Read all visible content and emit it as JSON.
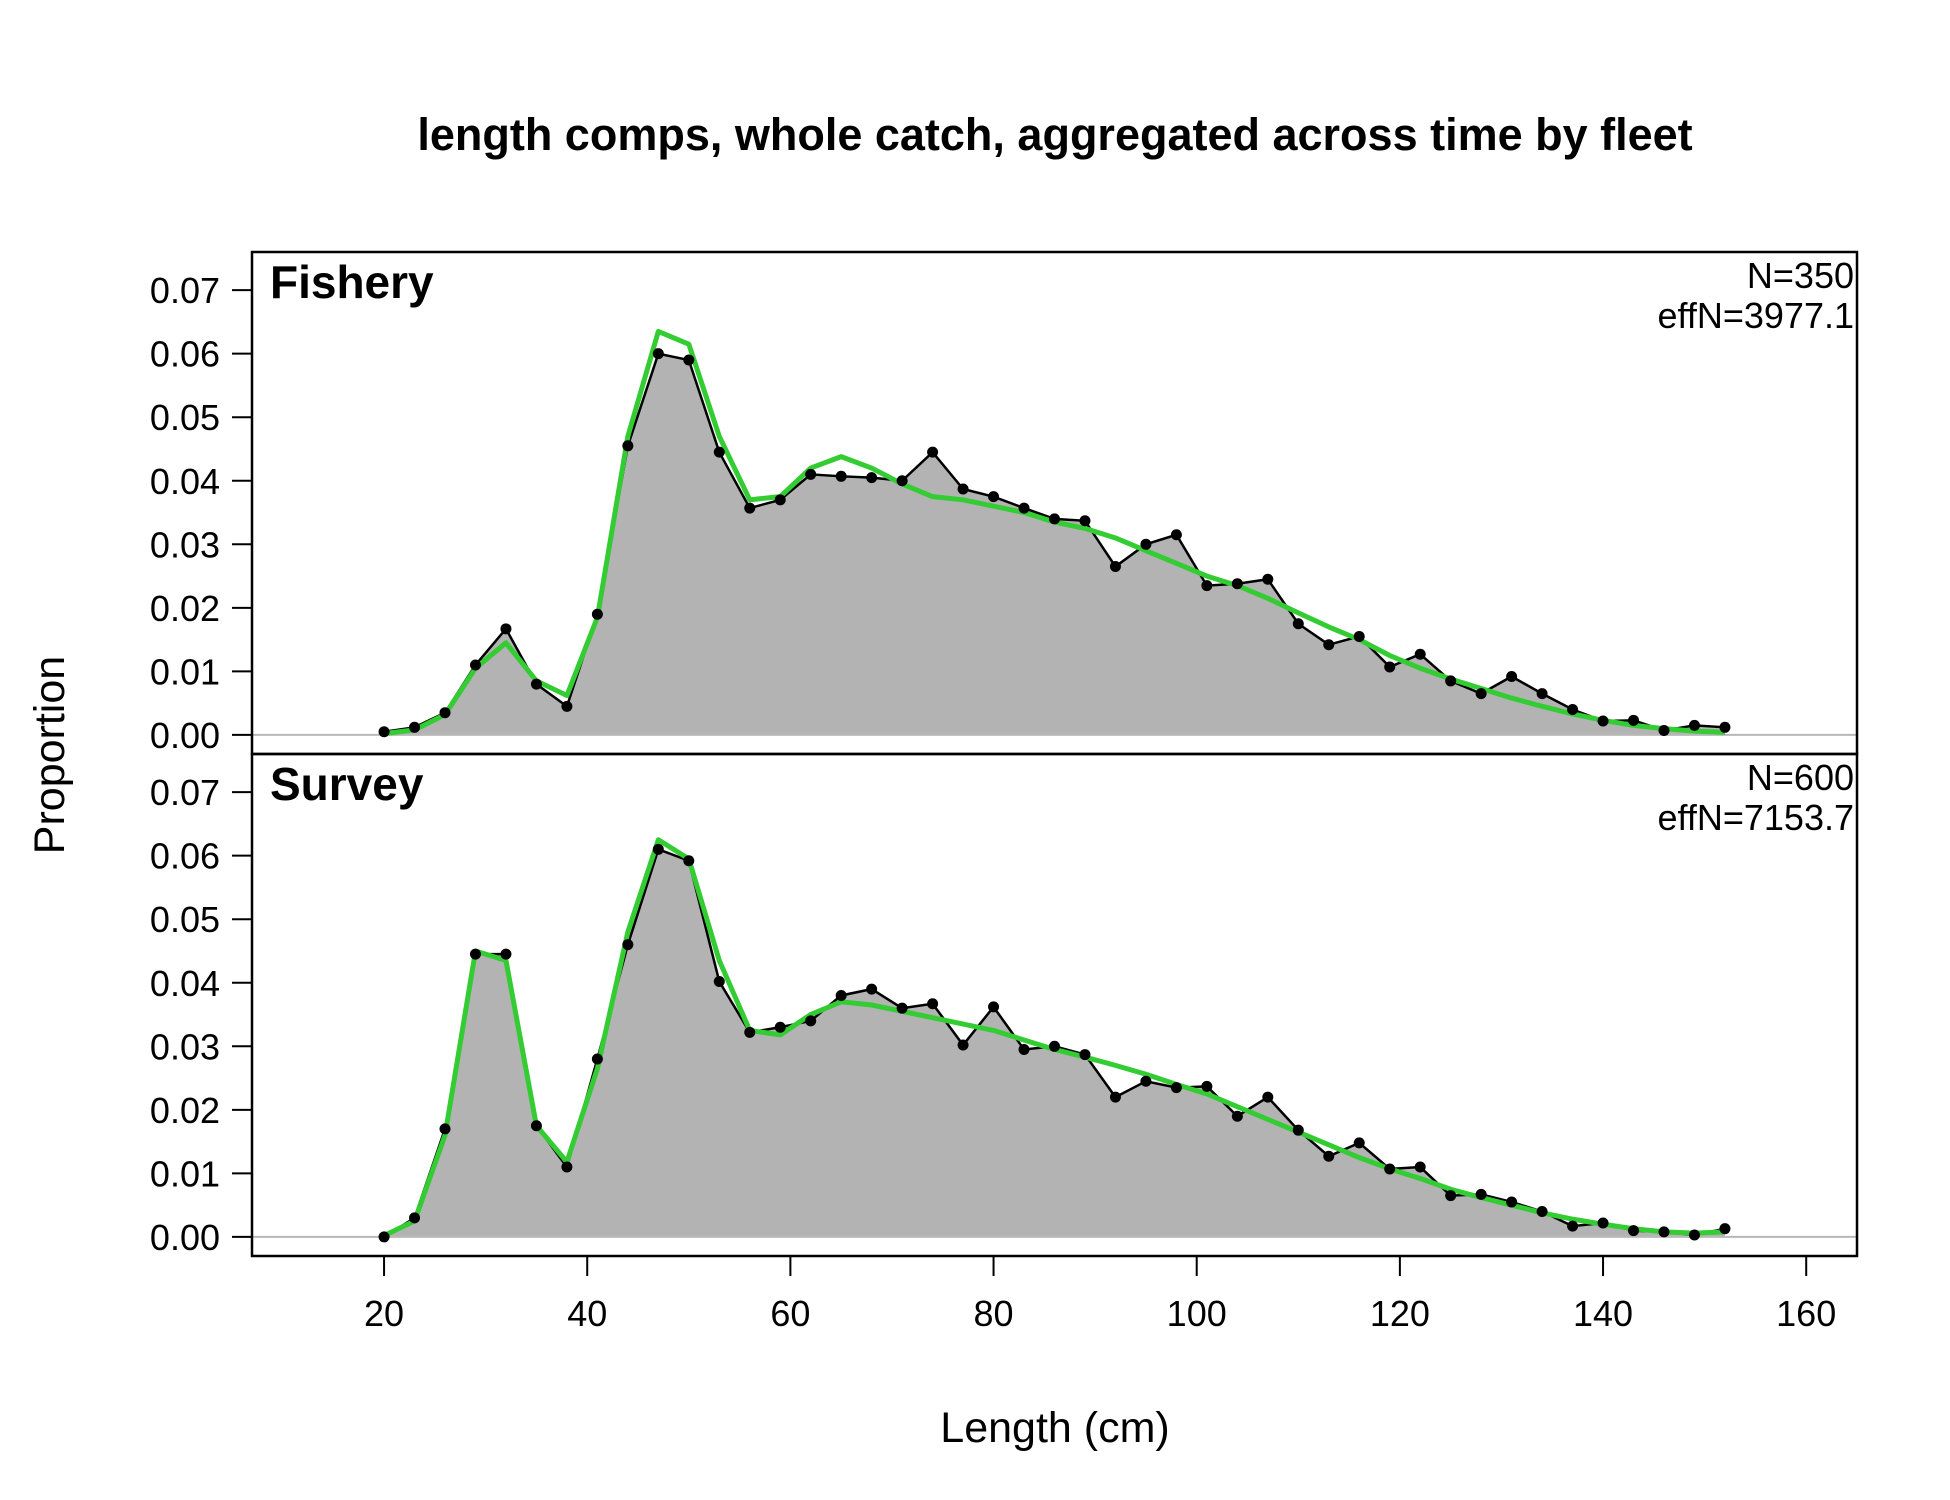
{
  "chart_data": {
    "type": "area",
    "title": "length comps, whole catch, aggregated across time by fleet",
    "xlabel": "Length (cm)",
    "ylabel": "Proportion",
    "xlim": [
      7,
      165
    ],
    "ylim": [
      -0.003,
      0.076
    ],
    "x_ticks": [
      "20",
      "40",
      "60",
      "80",
      "100",
      "120",
      "140",
      "160"
    ],
    "y_ticks": [
      "0.00",
      "0.01",
      "0.02",
      "0.03",
      "0.04",
      "0.05",
      "0.06",
      "0.07"
    ],
    "grid": false,
    "colors": {
      "observed_fill": "#b3b3b3",
      "observed_line": "#000000",
      "expected_line": "#33cc33",
      "zero_line": "#b8b8b8"
    },
    "x": [
      20,
      23,
      26,
      29,
      32,
      35,
      38,
      41,
      44,
      47,
      50,
      53,
      56,
      59,
      62,
      65,
      68,
      71,
      74,
      77,
      80,
      83,
      86,
      89,
      92,
      95,
      98,
      101,
      104,
      107,
      110,
      113,
      116,
      119,
      122,
      125,
      128,
      131,
      134,
      137,
      140,
      143,
      146,
      149,
      152
    ],
    "panels": [
      {
        "label": "Fishery",
        "n_text": "N=350",
        "effn_text": "effN=3977.1",
        "series": [
          {
            "name": "observed",
            "values": [
              0.0005,
              0.0012,
              0.0035,
              0.011,
              0.0167,
              0.008,
              0.0045,
              0.019,
              0.0455,
              0.06,
              0.059,
              0.0445,
              0.0357,
              0.037,
              0.041,
              0.0407,
              0.0405,
              0.04,
              0.0445,
              0.0387,
              0.0375,
              0.0357,
              0.034,
              0.0337,
              0.0265,
              0.03,
              0.0315,
              0.0235,
              0.0238,
              0.0245,
              0.0175,
              0.0142,
              0.0155,
              0.0107,
              0.0127,
              0.0085,
              0.0065,
              0.0092,
              0.0065,
              0.004,
              0.0022,
              0.0023,
              0.0007,
              0.0015,
              0.0012
            ]
          },
          {
            "name": "expected",
            "values": [
              0.0002,
              0.0008,
              0.0032,
              0.0105,
              0.0145,
              0.0085,
              0.0062,
              0.0185,
              0.047,
              0.0635,
              0.0615,
              0.047,
              0.037,
              0.0375,
              0.042,
              0.0438,
              0.042,
              0.0395,
              0.0375,
              0.037,
              0.036,
              0.035,
              0.0335,
              0.0325,
              0.031,
              0.029,
              0.027,
              0.025,
              0.0235,
              0.0215,
              0.0192,
              0.017,
              0.015,
              0.0125,
              0.0105,
              0.0088,
              0.0073,
              0.0058,
              0.0045,
              0.0033,
              0.0023,
              0.0015,
              0.001,
              0.0006,
              0.0004
            ]
          }
        ]
      },
      {
        "label": "Survey",
        "n_text": "N=600",
        "effn_text": "effN=7153.7",
        "series": [
          {
            "name": "observed",
            "values": [
              0.0,
              0.003,
              0.017,
              0.0445,
              0.0445,
              0.0175,
              0.011,
              0.028,
              0.046,
              0.061,
              0.0592,
              0.0402,
              0.0322,
              0.033,
              0.034,
              0.038,
              0.039,
              0.036,
              0.0367,
              0.0302,
              0.0362,
              0.0295,
              0.03,
              0.0287,
              0.022,
              0.0245,
              0.0235,
              0.0237,
              0.019,
              0.022,
              0.0168,
              0.0127,
              0.0148,
              0.0107,
              0.011,
              0.0065,
              0.0067,
              0.0055,
              0.004,
              0.0017,
              0.0022,
              0.001,
              0.0008,
              0.0003,
              0.0013
            ]
          },
          {
            "name": "expected",
            "values": [
              0.0002,
              0.0025,
              0.016,
              0.045,
              0.0435,
              0.0175,
              0.0118,
              0.0265,
              0.048,
              0.0625,
              0.0595,
              0.0435,
              0.0325,
              0.0318,
              0.035,
              0.037,
              0.0365,
              0.0355,
              0.0345,
              0.0335,
              0.0325,
              0.031,
              0.0295,
              0.0283,
              0.027,
              0.0256,
              0.024,
              0.0225,
              0.0205,
              0.0185,
              0.0165,
              0.0145,
              0.0125,
              0.0107,
              0.0092,
              0.0075,
              0.0062,
              0.005,
              0.0038,
              0.0028,
              0.002,
              0.0013,
              0.0008,
              0.0006,
              0.0008
            ]
          }
        ]
      }
    ]
  }
}
